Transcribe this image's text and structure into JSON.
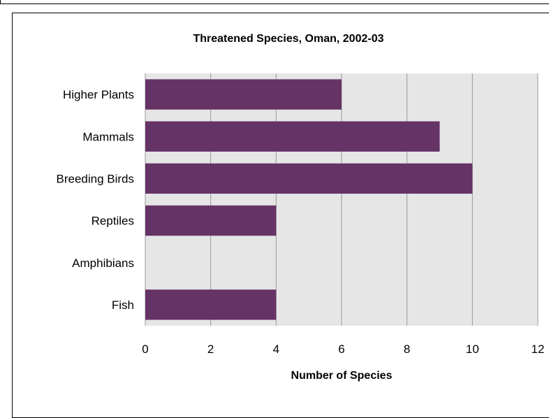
{
  "chart_data": {
    "type": "bar",
    "orientation": "horizontal",
    "title": "Threatened Species, Oman, 2002-03",
    "xlabel": "Number of Species",
    "ylabel": "",
    "categories": [
      "Higher Plants",
      "Mammals",
      "Breeding Birds",
      "Reptiles",
      "Amphibians",
      "Fish"
    ],
    "values": [
      6,
      9,
      10,
      4,
      0,
      4
    ],
    "xlim": [
      0,
      12
    ],
    "xticks": [
      "0",
      "2",
      "4",
      "6",
      "8",
      "10",
      "12"
    ],
    "grid": true,
    "colors": {
      "bar": "#663366",
      "plot_bg": "#e6e6e6",
      "grid": "#999999"
    }
  }
}
